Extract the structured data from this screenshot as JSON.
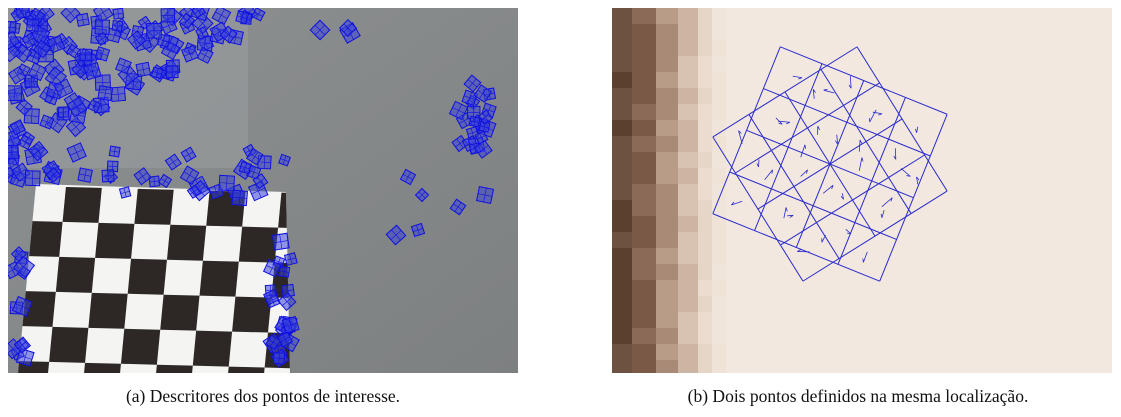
{
  "captions": {
    "a": "(a) Descritores dos pontos de interesse.",
    "b": "(b) Dois pontos definidos na mesma localização."
  }
}
